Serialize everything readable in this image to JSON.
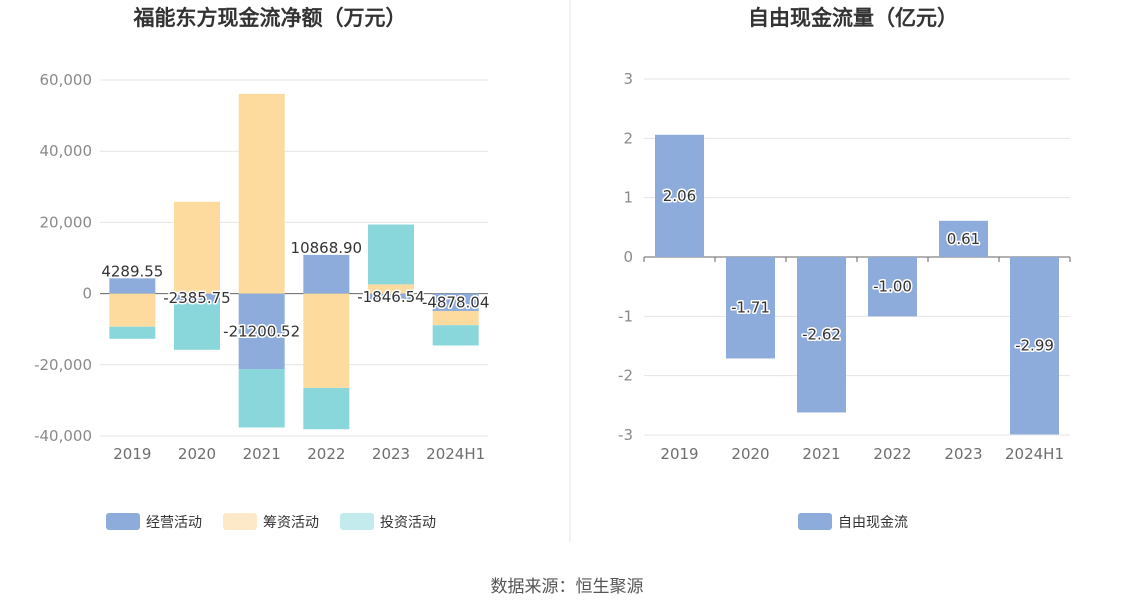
{
  "source": "数据来源：恒生聚源",
  "colors": {
    "operating": "#8eacdb",
    "financing": "#fddb9e",
    "investing": "#89d6db",
    "free_cash_flow": "#8eacdb",
    "legend_financing": "#fde9c7",
    "legend_investing": "#c3ebee"
  },
  "chart_data": [
    {
      "type": "bar",
      "stacked": true,
      "title": "福能东方现金流净额（万元）",
      "categories": [
        "2019",
        "2020",
        "2021",
        "2022",
        "2023",
        "2024H1"
      ],
      "yticks": [
        "60,000",
        "40,000",
        "20,000",
        "0",
        "-20,000",
        "-40,000"
      ],
      "ylim": [
        -40000,
        60000
      ],
      "series": [
        {
          "name": "经营活动",
          "values": [
            4289.55,
            -2385.75,
            -21200.52,
            10868.9,
            -1846.54,
            -4878.04
          ]
        },
        {
          "name": "筹资活动",
          "values": [
            -9300,
            25800,
            56100,
            -26500,
            2600,
            -4000
          ]
        },
        {
          "name": "投资活动",
          "values": [
            -3400,
            -13400,
            -16400,
            -11600,
            16800,
            -5700
          ]
        }
      ],
      "data_labels": [
        "4289.55",
        "-2385.75",
        "-21200.52",
        "10868.90",
        "-1846.54",
        "-4878.04"
      ],
      "legend": "bottom"
    },
    {
      "type": "bar",
      "title": "自由现金流量（亿元）",
      "categories": [
        "2019",
        "2020",
        "2021",
        "2022",
        "2023",
        "2024H1"
      ],
      "yticks": [
        "3",
        "2",
        "1",
        "0",
        "-1",
        "-2",
        "-3"
      ],
      "ylim": [
        -3,
        3
      ],
      "series": [
        {
          "name": "自由现金流",
          "values": [
            2.06,
            -1.71,
            -2.62,
            -1.0,
            0.61,
            -2.99
          ]
        }
      ],
      "data_labels": [
        "2.06",
        "-1.71",
        "-2.62",
        "-1.00",
        "0.61",
        "-2.99"
      ],
      "legend": "bottom"
    }
  ]
}
